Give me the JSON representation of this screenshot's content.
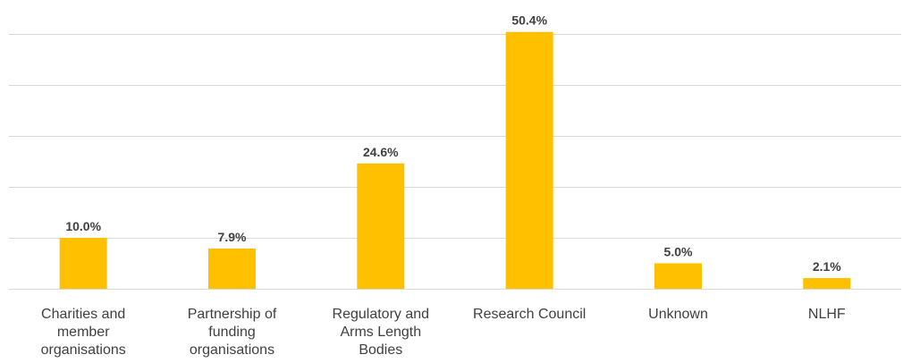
{
  "chart_data": {
    "type": "bar",
    "categories": [
      [
        "Charities and",
        "member",
        "organisations"
      ],
      [
        "Partnership of",
        "funding",
        "organisations"
      ],
      [
        "Regulatory and",
        "Arms Length",
        "Bodies"
      ],
      [
        "Research Council"
      ],
      [
        "Unknown"
      ],
      [
        "NLHF"
      ]
    ],
    "values": [
      10.0,
      7.9,
      24.6,
      50.4,
      5.0,
      2.1
    ],
    "data_labels": [
      "10.0%",
      "7.9%",
      "24.6%",
      "50.4%",
      "5.0%",
      "2.1%"
    ],
    "ylim": [
      0,
      50
    ],
    "gridlines": [
      0,
      10,
      20,
      30,
      40,
      50
    ],
    "grid": true,
    "legend": "none",
    "title": "",
    "xlabel": "",
    "ylabel": "",
    "bar_color": "#FFC000"
  }
}
